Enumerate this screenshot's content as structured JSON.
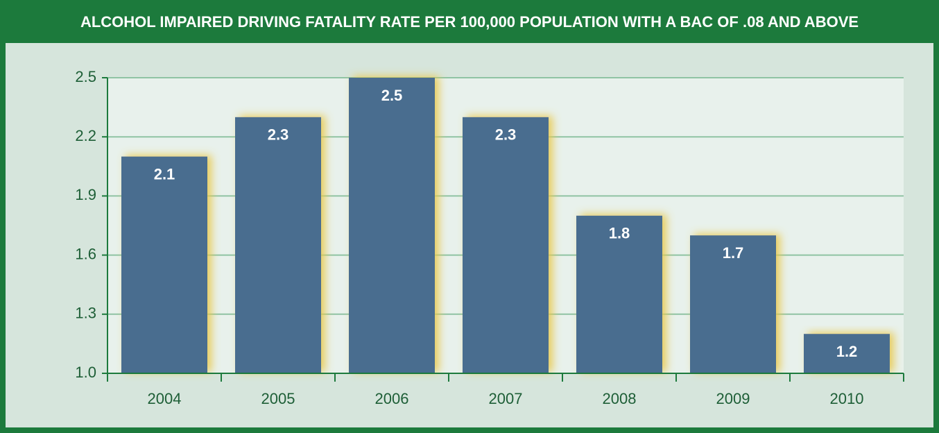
{
  "chart_data": {
    "type": "bar",
    "title": "ALCOHOL IMPAIRED DRIVING FATALITY RATE PER 100,000 POPULATION WITH A BAC OF .08 AND ABOVE",
    "categories": [
      "2004",
      "2005",
      "2006",
      "2007",
      "2008",
      "2009",
      "2010"
    ],
    "values": [
      2.1,
      2.3,
      2.5,
      2.3,
      1.8,
      1.7,
      1.2
    ],
    "color": "#4a6d8f",
    "ylim": [
      1,
      2.5
    ],
    "yticks": [
      {
        "value": 1,
        "label": "1.0"
      },
      1.3,
      1.6,
      1.9,
      2.2,
      2.5
    ],
    "grid": true
  }
}
